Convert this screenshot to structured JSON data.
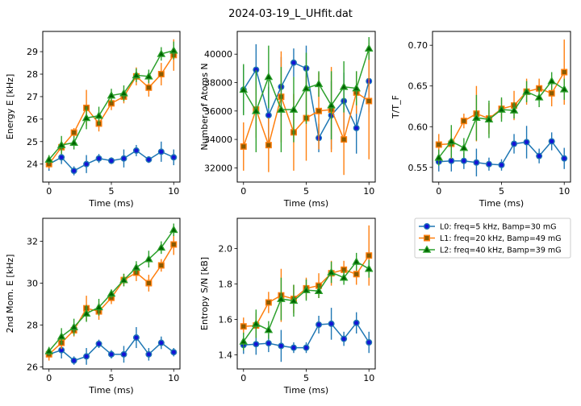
{
  "figure": {
    "title": "2024-03-19_L_UHfit.dat"
  },
  "legend": {
    "placement": "right-column-top",
    "entries": [
      {
        "label": "L0: freq=5 kHz, Bamp=30 mG",
        "color": "#1f77b4",
        "marker": "circle"
      },
      {
        "label": "L1: freq=20 kHz, Bamp=49 mG",
        "color": "#ff7f0e",
        "marker": "square"
      },
      {
        "label": "L2: freq=40 kHz, Bamp=39 mG",
        "color": "#2ca02c",
        "marker": "triangle"
      }
    ]
  },
  "chart_data": [
    {
      "type": "line",
      "xlabel": "Time (ms)",
      "ylabel": "Energy E [kHz]",
      "xlim": [
        -0.5,
        10.5
      ],
      "ylim": [
        23.2,
        29.9
      ],
      "xticks": [
        0,
        5,
        10
      ],
      "yticks": [
        24,
        25,
        26,
        27,
        28,
        29
      ],
      "x": [
        0,
        1,
        2,
        3,
        4,
        5,
        6,
        7,
        8,
        9,
        10
      ],
      "series": [
        {
          "name": "L0: freq=5 kHz, Bamp=30 mG",
          "values": [
            24.0,
            24.3,
            23.7,
            24.0,
            24.25,
            24.15,
            24.25,
            24.6,
            24.2,
            24.55,
            24.3
          ],
          "errors": [
            0.3,
            0.3,
            0.2,
            0.4,
            0.2,
            0.15,
            0.4,
            0.25,
            0.15,
            0.45,
            0.35
          ]
        },
        {
          "name": "L1: freq=20 kHz, Bamp=49 mG",
          "values": [
            24.0,
            24.75,
            25.4,
            26.5,
            25.8,
            26.7,
            27.0,
            27.9,
            27.4,
            28.0,
            28.85
          ],
          "errors": [
            0.2,
            0.3,
            0.2,
            0.8,
            0.35,
            0.3,
            0.3,
            0.4,
            0.4,
            0.5,
            0.7
          ]
        },
        {
          "name": "L2: freq=40 kHz, Bamp=39 mG",
          "values": [
            24.2,
            24.85,
            24.95,
            26.05,
            26.15,
            27.05,
            27.15,
            27.95,
            27.9,
            28.9,
            29.05
          ],
          "errors": [
            0.2,
            0.4,
            0.3,
            0.5,
            0.4,
            0.3,
            0.35,
            0.3,
            0.3,
            0.3,
            0.4
          ]
        }
      ]
    },
    {
      "type": "line",
      "xlabel": "Time (ms)",
      "ylabel": "Number of Atoms N",
      "xlim": [
        -0.5,
        10.5
      ],
      "ylim": [
        31000,
        41600
      ],
      "xticks": [
        0,
        5,
        10
      ],
      "yticks": [
        32000,
        34000,
        36000,
        38000,
        40000
      ],
      "x": [
        0,
        1,
        2,
        3,
        4,
        5,
        6,
        7,
        8,
        9,
        10
      ],
      "series": [
        {
          "name": "L0: freq=5 kHz, Bamp=30 mG",
          "values": [
            37500,
            38900,
            35700,
            37700,
            39400,
            39000,
            34100,
            35700,
            36700,
            34800,
            38100
          ],
          "errors": [
            1700,
            1800,
            2000,
            2100,
            1000,
            1600,
            1000,
            2400,
            2000,
            1800,
            2200
          ]
        },
        {
          "name": "L1: freq=20 kHz, Bamp=49 mG",
          "values": [
            33500,
            36100,
            33600,
            37000,
            34500,
            35500,
            36000,
            36100,
            34000,
            37300,
            36700
          ],
          "errors": [
            1700,
            2000,
            1900,
            3200,
            2700,
            3000,
            2700,
            3000,
            2500,
            1500,
            4100
          ]
        },
        {
          "name": "L2: freq=40 kHz, Bamp=39 mG",
          "values": [
            37500,
            36000,
            38400,
            36100,
            36100,
            37600,
            37900,
            36400,
            37700,
            37600,
            40400
          ],
          "errors": [
            1800,
            2900,
            2200,
            3000,
            2300,
            2500,
            900,
            2400,
            1800,
            1200,
            800
          ]
        }
      ]
    },
    {
      "type": "line",
      "xlabel": "Time (ms)",
      "ylabel": "T/T_F",
      "xlim": [
        -0.5,
        10.5
      ],
      "ylim": [
        0.532,
        0.717
      ],
      "xticks": [
        0,
        5,
        10
      ],
      "yticks": [
        0.55,
        0.6,
        0.65,
        0.7
      ],
      "x": [
        0,
        1,
        2,
        3,
        4,
        5,
        6,
        7,
        8,
        9,
        10
      ],
      "series": [
        {
          "name": "L0: freq=5 kHz, Bamp=30 mG",
          "values": [
            0.557,
            0.558,
            0.558,
            0.556,
            0.554,
            0.553,
            0.579,
            0.581,
            0.564,
            0.582,
            0.561
          ],
          "errors": [
            0.012,
            0.013,
            0.01,
            0.017,
            0.008,
            0.007,
            0.012,
            0.02,
            0.009,
            0.011,
            0.013
          ]
        },
        {
          "name": "L1: freq=20 kHz, Bamp=49 mG",
          "values": [
            0.578,
            0.579,
            0.607,
            0.616,
            0.61,
            0.622,
            0.626,
            0.643,
            0.647,
            0.641,
            0.667
          ],
          "errors": [
            0.013,
            0.018,
            0.009,
            0.034,
            0.019,
            0.012,
            0.018,
            0.016,
            0.012,
            0.016,
            0.04
          ]
        },
        {
          "name": "L2: freq=40 kHz, Bamp=39 mG",
          "values": [
            0.562,
            0.582,
            0.574,
            0.611,
            0.609,
            0.621,
            0.62,
            0.643,
            0.636,
            0.656,
            0.646
          ],
          "errors": [
            0.01,
            0.02,
            0.012,
            0.028,
            0.023,
            0.015,
            0.01,
            0.013,
            0.012,
            0.011,
            0.013
          ]
        }
      ]
    },
    {
      "type": "line",
      "xlabel": "Time (ms)",
      "ylabel": "2nd Mom. E [kHz]",
      "xlim": [
        -0.5,
        10.5
      ],
      "ylim": [
        25.9,
        33.1
      ],
      "xticks": [
        0,
        5,
        10
      ],
      "yticks": [
        26,
        28,
        30,
        32
      ],
      "x": [
        0,
        1,
        2,
        3,
        4,
        5,
        6,
        7,
        8,
        9,
        10
      ],
      "series": [
        {
          "name": "L0: freq=5 kHz, Bamp=30 mG",
          "values": [
            26.6,
            26.8,
            26.3,
            26.5,
            27.1,
            26.6,
            26.6,
            27.4,
            26.6,
            27.15,
            26.7
          ],
          "errors": [
            0.2,
            0.4,
            0.2,
            0.4,
            0.2,
            0.2,
            0.4,
            0.5,
            0.3,
            0.3,
            0.2
          ]
        },
        {
          "name": "L1: freq=20 kHz, Bamp=49 mG",
          "values": [
            26.6,
            27.15,
            27.75,
            28.8,
            28.65,
            29.3,
            30.15,
            30.5,
            30.0,
            30.85,
            31.85
          ],
          "errors": [
            0.3,
            0.3,
            0.3,
            0.6,
            0.4,
            0.3,
            0.3,
            0.4,
            0.4,
            0.3,
            0.5
          ]
        },
        {
          "name": "L2: freq=40 kHz, Bamp=39 mG",
          "values": [
            26.75,
            27.45,
            27.9,
            28.55,
            28.85,
            29.5,
            30.15,
            30.75,
            31.15,
            31.7,
            32.55
          ],
          "errors": [
            0.2,
            0.4,
            0.4,
            0.4,
            0.4,
            0.2,
            0.3,
            0.3,
            0.4,
            0.3,
            0.3
          ]
        }
      ]
    },
    {
      "type": "line",
      "xlabel": "Time (ms)",
      "ylabel": "Entropy S/N [kB]",
      "xlim": [
        -0.5,
        10.5
      ],
      "ylim": [
        1.32,
        2.17
      ],
      "xticks": [
        0,
        5,
        10
      ],
      "yticks": [
        1.4,
        1.6,
        1.8,
        2.0
      ],
      "x": [
        0,
        1,
        2,
        3,
        4,
        5,
        6,
        7,
        8,
        9,
        10
      ],
      "series": [
        {
          "name": "L0: freq=5 kHz, Bamp=30 mG",
          "values": [
            1.455,
            1.46,
            1.465,
            1.45,
            1.44,
            1.44,
            1.57,
            1.575,
            1.49,
            1.58,
            1.47
          ],
          "errors": [
            0.05,
            0.06,
            0.05,
            0.09,
            0.03,
            0.03,
            0.05,
            0.09,
            0.04,
            0.06,
            0.06
          ]
        },
        {
          "name": "L1: freq=20 kHz, Bamp=49 mG",
          "values": [
            1.56,
            1.565,
            1.695,
            1.735,
            1.715,
            1.775,
            1.79,
            1.86,
            1.88,
            1.855,
            1.96
          ],
          "errors": [
            0.05,
            0.07,
            0.06,
            0.15,
            0.08,
            0.06,
            0.07,
            0.07,
            0.05,
            0.06,
            0.17
          ]
        },
        {
          "name": "L2: freq=40 kHz, Bamp=39 mG",
          "values": [
            1.475,
            1.575,
            1.54,
            1.715,
            1.705,
            1.765,
            1.76,
            1.865,
            1.835,
            1.925,
            1.885
          ],
          "errors": [
            0.05,
            0.08,
            0.05,
            0.12,
            0.09,
            0.06,
            0.04,
            0.06,
            0.04,
            0.05,
            0.05
          ]
        }
      ]
    }
  ]
}
